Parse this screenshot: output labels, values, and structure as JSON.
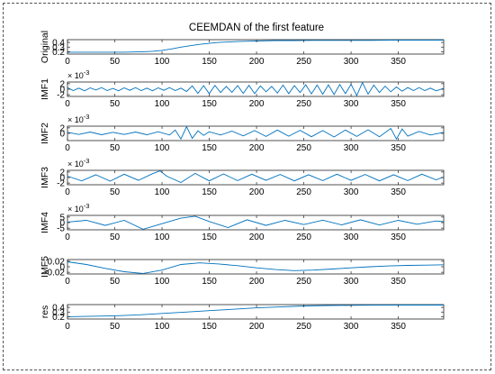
{
  "chart_data": {
    "type": "line",
    "title": "CEEMDAN of the first feature",
    "x_ticks": [
      0,
      50,
      100,
      150,
      200,
      250,
      300,
      350
    ],
    "xlim": [
      0,
      398
    ],
    "line_color": "#0072BD",
    "panels": [
      {
        "ylabel": "Original",
        "ylim": [
          0.15,
          0.46
        ],
        "yticks": [
          0.2,
          0.3,
          0.4
        ],
        "ytick_labels": [
          "0.2",
          "0.3",
          "0.4"
        ],
        "exponent": "",
        "x": [
          0,
          20,
          40,
          60,
          70,
          80,
          90,
          100,
          110,
          120,
          130,
          140,
          150,
          160,
          170,
          180,
          190,
          200,
          220,
          240,
          260,
          280,
          300,
          320,
          340,
          360,
          380,
          398
        ],
        "y": [
          0.19,
          0.19,
          0.19,
          0.19,
          0.195,
          0.2,
          0.21,
          0.23,
          0.26,
          0.3,
          0.33,
          0.36,
          0.38,
          0.4,
          0.41,
          0.42,
          0.425,
          0.43,
          0.44,
          0.44,
          0.445,
          0.445,
          0.445,
          0.445,
          0.45,
          0.45,
          0.45,
          0.45
        ]
      },
      {
        "ylabel": "IMF1",
        "ylim": [
          -2.6,
          2.6
        ],
        "yticks": [
          -2,
          0,
          2
        ],
        "ytick_labels": [
          "-2",
          "0",
          "2"
        ],
        "exponent": "× 10^-3",
        "x": [
          0,
          6,
          12,
          18,
          24,
          30,
          36,
          42,
          48,
          54,
          60,
          66,
          72,
          78,
          84,
          90,
          96,
          102,
          108,
          114,
          120,
          126,
          132,
          138,
          144,
          150,
          156,
          162,
          168,
          174,
          180,
          186,
          192,
          198,
          204,
          210,
          216,
          222,
          228,
          234,
          240,
          246,
          252,
          258,
          264,
          270,
          276,
          282,
          288,
          294,
          300,
          306,
          312,
          318,
          324,
          330,
          336,
          342,
          348,
          354,
          360,
          366,
          372,
          378,
          384,
          390,
          398
        ],
        "y": [
          0.6,
          -0.5,
          0.4,
          -0.6,
          0.5,
          -0.3,
          0.6,
          -0.5,
          0.3,
          -0.6,
          0.5,
          -0.4,
          0.6,
          -0.5,
          0.4,
          -0.6,
          0.5,
          -0.4,
          0.6,
          -0.5,
          0.4,
          -0.8,
          1.2,
          -1.5,
          1.3,
          -1.6,
          1.4,
          -1.2,
          1.0,
          -1.1,
          1.3,
          -1.5,
          1.4,
          -1.6,
          1.2,
          -0.9,
          1.0,
          -1.4,
          1.5,
          -1.6,
          1.3,
          -1.2,
          1.6,
          -1.7,
          1.5,
          -1.8,
          1.6,
          -1.9,
          1.7,
          -1.6,
          1.8,
          -2.3,
          2.4,
          -1.8,
          1.5,
          -1.2,
          1.1,
          -0.9,
          0.8,
          -0.7,
          0.6,
          -0.5,
          0.6,
          -0.5,
          0.4,
          -0.6,
          0.3
        ]
      },
      {
        "ylabel": "IMF2",
        "ylim": [
          -2.6,
          2.6
        ],
        "yticks": [
          0,
          2
        ],
        "ytick_labels": [
          "0",
          "2"
        ],
        "exponent": "× 10^-3",
        "x": [
          0,
          12,
          24,
          36,
          48,
          60,
          72,
          84,
          96,
          108,
          114,
          120,
          126,
          132,
          138,
          144,
          150,
          162,
          174,
          186,
          198,
          210,
          222,
          234,
          246,
          258,
          270,
          282,
          294,
          306,
          318,
          330,
          342,
          348,
          354,
          360,
          372,
          384,
          398
        ],
        "y": [
          0.4,
          -0.4,
          0.5,
          -0.5,
          0.4,
          -0.4,
          0.5,
          -0.5,
          0.6,
          -0.6,
          1.2,
          -2.0,
          2.4,
          -1.8,
          0.9,
          -0.7,
          0.6,
          -0.6,
          0.8,
          -0.9,
          1.0,
          -1.1,
          1.2,
          -1.0,
          1.1,
          -1.2,
          1.0,
          -1.3,
          1.2,
          -1.1,
          1.3,
          -1.2,
          1.8,
          -2.0,
          1.6,
          -1.0,
          0.7,
          -0.6,
          0.4
        ]
      },
      {
        "ylabel": "IMF3",
        "ylim": [
          -2.6,
          2.6
        ],
        "yticks": [
          -2,
          0,
          2
        ],
        "ytick_labels": [
          "-2",
          "0",
          "2"
        ],
        "exponent": "× 10^-3",
        "x": [
          0,
          15,
          30,
          45,
          60,
          75,
          90,
          98,
          105,
          120,
          135,
          150,
          165,
          180,
          195,
          210,
          225,
          240,
          255,
          270,
          285,
          300,
          315,
          330,
          345,
          360,
          375,
          390,
          398
        ],
        "y": [
          0.5,
          -1.2,
          1.0,
          -1.3,
          1.2,
          -1.0,
          1.4,
          2.4,
          0.5,
          -1.8,
          1.5,
          -1.2,
          1.3,
          -1.1,
          1.2,
          -1.0,
          1.1,
          -1.2,
          1.0,
          -1.1,
          1.2,
          -1.0,
          1.1,
          -1.2,
          1.0,
          -1.1,
          1.2,
          -0.8,
          0.2
        ]
      },
      {
        "ylabel": "IMF4",
        "ylim": [
          -6.5,
          6.5
        ],
        "yticks": [
          -5,
          0,
          5
        ],
        "ytick_labels": [
          "-5",
          "0",
          "5"
        ],
        "exponent": "× 10^-3",
        "x": [
          0,
          20,
          40,
          60,
          80,
          100,
          120,
          135,
          150,
          170,
          190,
          210,
          230,
          250,
          270,
          290,
          310,
          330,
          350,
          370,
          390,
          398
        ],
        "y": [
          0.5,
          2.0,
          -2.5,
          2.0,
          -6.0,
          -1.0,
          4.0,
          5.8,
          1.0,
          -4.5,
          2.5,
          -2.5,
          2.0,
          -1.8,
          2.2,
          -2.0,
          2.5,
          -2.2,
          2.0,
          -1.5,
          1.5,
          0.8
        ]
      },
      {
        "ylabel": "IMF5",
        "ylim": [
          -0.026,
          0.026
        ],
        "yticks": [
          -0.02,
          0,
          0.02
        ],
        "ytick_labels": [
          "-0.02",
          "0",
          "0.02"
        ],
        "exponent": "",
        "x": [
          0,
          20,
          40,
          60,
          80,
          100,
          120,
          140,
          160,
          180,
          200,
          220,
          240,
          260,
          280,
          300,
          320,
          340,
          360,
          380,
          398
        ],
        "y": [
          0.018,
          0.008,
          -0.006,
          -0.018,
          -0.024,
          -0.012,
          0.008,
          0.014,
          0.01,
          0.004,
          -0.004,
          -0.01,
          -0.014,
          -0.012,
          -0.008,
          -0.004,
          0.0,
          0.003,
          0.005,
          0.006,
          0.007
        ]
      },
      {
        "ylabel": "res",
        "ylim": [
          0.15,
          0.46
        ],
        "yticks": [
          0.2,
          0.3,
          0.4
        ],
        "ytick_labels": [
          "0.2",
          "0.3",
          "0.4"
        ],
        "exponent": "",
        "x": [
          0,
          25,
          50,
          75,
          100,
          125,
          150,
          175,
          200,
          225,
          250,
          275,
          300,
          325,
          350,
          375,
          398
        ],
        "y": [
          0.2,
          0.21,
          0.22,
          0.24,
          0.27,
          0.3,
          0.33,
          0.36,
          0.39,
          0.41,
          0.43,
          0.44,
          0.445,
          0.448,
          0.45,
          0.45,
          0.45
        ]
      }
    ]
  }
}
